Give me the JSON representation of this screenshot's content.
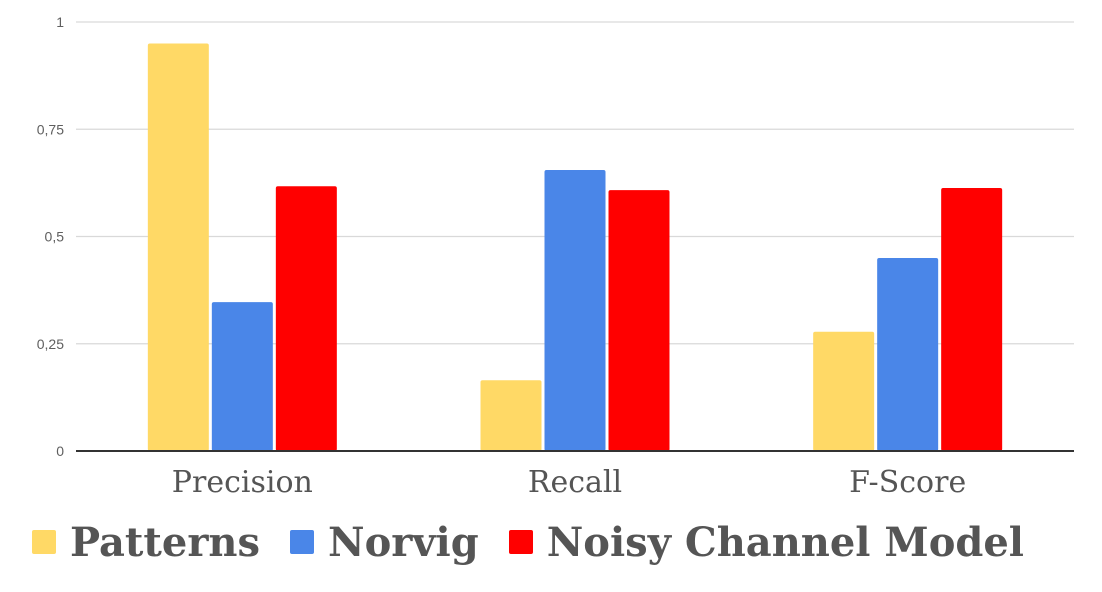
{
  "chart_data": {
    "type": "bar",
    "categories": [
      "Precision",
      "Recall",
      "F-Score"
    ],
    "series": [
      {
        "name": "Patterns",
        "color": "#ffd966",
        "values": [
          0.95,
          0.165,
          0.278
        ]
      },
      {
        "name": "Norvig",
        "color": "#4a86e8",
        "values": [
          0.347,
          0.655,
          0.45
        ]
      },
      {
        "name": "Noisy Channel Model",
        "color": "#ff0000",
        "values": [
          0.617,
          0.608,
          0.613
        ]
      }
    ],
    "y_ticks": [
      "0",
      "0,25",
      "0,5",
      "0,75",
      "1"
    ],
    "ylim": [
      0,
      1
    ],
    "grid": true,
    "legend_position": "bottom"
  }
}
